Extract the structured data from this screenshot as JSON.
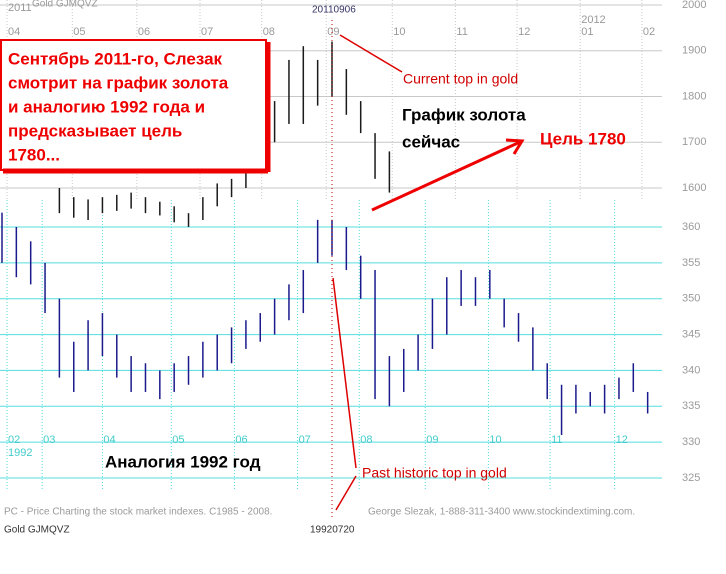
{
  "chart_data": [
    {
      "type": "range-bar",
      "name": "Gold GJMQVZ",
      "date_label": "20110906",
      "color": "#1a1a1a",
      "grid_color": "#c8c8c8",
      "xlim": [
        0,
        46
      ],
      "ylim": [
        1600,
        2000
      ],
      "xticks": [
        {
          "value": 0.35,
          "label": "04"
        },
        {
          "value": 4.9,
          "label": "05"
        },
        {
          "value": 9.4,
          "label": "06"
        },
        {
          "value": 13.8,
          "label": "07"
        },
        {
          "value": 18.1,
          "label": "08"
        },
        {
          "value": 22.6,
          "label": "09"
        },
        {
          "value": 27.2,
          "label": "10"
        },
        {
          "value": 31.6,
          "label": "11"
        },
        {
          "value": 35.9,
          "label": "12"
        },
        {
          "value": 40.3,
          "label": "01"
        },
        {
          "value": 44.6,
          "label": "02"
        }
      ],
      "year_labels": [
        {
          "value": 0.35,
          "label": "2011"
        },
        {
          "value": 40.3,
          "label": "2012"
        }
      ],
      "yticks": [
        1600,
        1700,
        1800,
        1900,
        2000
      ],
      "x": [
        4,
        5,
        6,
        7,
        8,
        9,
        10,
        11,
        12,
        13,
        14,
        15,
        16,
        17,
        18,
        19,
        20,
        21,
        22,
        23,
        24,
        25,
        26,
        27
      ],
      "high": [
        1600,
        1580,
        1575,
        1580,
        1585,
        1590,
        1580,
        1570,
        1560,
        1545,
        1580,
        1610,
        1620,
        1640,
        1700,
        1790,
        1880,
        1910,
        1880,
        1920,
        1860,
        1790,
        1720,
        1680
      ],
      "low": [
        1545,
        1535,
        1530,
        1545,
        1550,
        1555,
        1545,
        1540,
        1525,
        1515,
        1530,
        1560,
        1580,
        1600,
        1640,
        1700,
        1740,
        1740,
        1780,
        1800,
        1760,
        1720,
        1620,
        1590
      ]
    },
    {
      "type": "range-bar",
      "name": "Gold GJMQVZ",
      "date_label": "19920720",
      "color": "#1a1a8c",
      "grid_color": "#55dddd",
      "xlim": [
        0,
        46
      ],
      "ylim": [
        325,
        360
      ],
      "xticks": [
        {
          "value": 0.35,
          "label": "02"
        },
        {
          "value": 2.8,
          "label": "03"
        },
        {
          "value": 7,
          "label": "04"
        },
        {
          "value": 11.8,
          "label": "05"
        },
        {
          "value": 16.2,
          "label": "06"
        },
        {
          "value": 20.6,
          "label": "07"
        },
        {
          "value": 24.9,
          "label": "08"
        },
        {
          "value": 29.5,
          "label": "09"
        },
        {
          "value": 33.9,
          "label": "10"
        },
        {
          "value": 38.2,
          "label": "11"
        },
        {
          "value": 42.7,
          "label": "12"
        }
      ],
      "year_labels": [
        {
          "value": 0.35,
          "label": "1992"
        }
      ],
      "yticks": [
        325,
        330,
        335,
        340,
        345,
        350,
        355,
        360
      ],
      "x": [
        0,
        1,
        2,
        3,
        4,
        5,
        6,
        7,
        8,
        9,
        10,
        11,
        12,
        13,
        14,
        15,
        16,
        17,
        18,
        19,
        20,
        21,
        22,
        23,
        24,
        25,
        26,
        27,
        28,
        29,
        30,
        31,
        32,
        33,
        34,
        35,
        36,
        37,
        38,
        39,
        40,
        41,
        42,
        43,
        44,
        45
      ],
      "high": [
        362,
        360,
        358,
        355,
        350,
        344,
        347,
        348,
        345,
        342,
        341,
        340,
        341,
        342,
        344,
        345,
        346,
        347,
        348,
        350,
        352,
        354,
        361,
        361,
        360,
        356,
        354,
        342,
        343,
        345,
        350,
        353,
        354,
        353,
        354,
        350,
        348,
        346,
        341,
        338,
        338,
        337,
        338,
        339,
        341,
        337
      ],
      "low": [
        355,
        353,
        352,
        348,
        339,
        337,
        340,
        342,
        339,
        337,
        337,
        336,
        337,
        338,
        339,
        340,
        341,
        343,
        344,
        345,
        347,
        348,
        355,
        356,
        354,
        350,
        336,
        335,
        337,
        340,
        343,
        345,
        349,
        349,
        350,
        346,
        344,
        340,
        336,
        331,
        334,
        335,
        334,
        336,
        337,
        334
      ]
    }
  ],
  "annotations": {
    "box_lines": [
      " Сентябрь 2011-го, Слезак",
      "смотрит на график золота",
      "и аналогию 1992 года и",
      "предсказывает цель",
      "1780..."
    ],
    "current_top": "Current top in gold",
    "now_lines": [
      "График золота",
      "сейчас"
    ],
    "target": "Цель 1780",
    "analogy": "Аналогия 1992 год",
    "past_top": "Past historic top in gold"
  },
  "footer": {
    "left": "PC - Price Charting the stock market indexes. C1985 - 2008.",
    "right": "George Slezak, 1-888-311-3400 www.stockindextiming.com."
  }
}
